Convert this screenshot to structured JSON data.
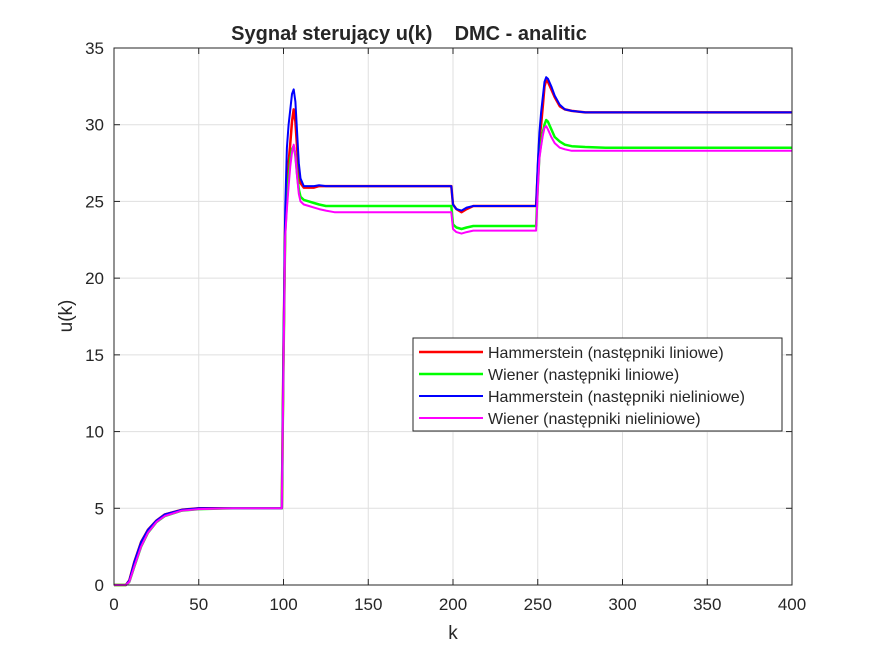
{
  "chart_data": {
    "type": "line",
    "title": "Sygnał sterujący u(k)    DMC - analitic",
    "xlabel": "k",
    "ylabel": "u(k)",
    "xlim": [
      0,
      400
    ],
    "ylim": [
      0,
      35
    ],
    "xticks": [
      0,
      50,
      100,
      150,
      200,
      250,
      300,
      350,
      400
    ],
    "yticks": [
      0,
      5,
      10,
      15,
      20,
      25,
      30,
      35
    ],
    "grid": true,
    "legend_position": "right, middle",
    "series": [
      {
        "name": "Hammerstein (następniki liniowe)",
        "color": "#ff0000",
        "x": [
          0,
          7,
          9,
          12,
          16,
          20,
          25,
          30,
          40,
          50,
          70,
          99,
          100,
          101,
          102,
          103,
          104,
          105,
          106,
          107,
          108,
          109,
          110,
          112,
          115,
          118,
          121,
          125,
          130,
          140,
          160,
          180,
          199,
          200,
          202,
          205,
          208,
          212,
          220,
          235,
          249,
          250,
          251,
          252,
          253,
          254,
          255,
          256,
          258,
          260,
          263,
          266,
          270,
          278,
          290,
          320,
          360,
          400
        ],
        "y": [
          0,
          0,
          0.3,
          1.5,
          2.8,
          3.6,
          4.2,
          4.6,
          4.9,
          5.0,
          5.0,
          5.0,
          15.3,
          23.5,
          25.8,
          27.5,
          28.8,
          30.2,
          31.0,
          30.2,
          28.5,
          27.0,
          26.2,
          25.9,
          25.9,
          25.9,
          26.0,
          26.0,
          26.0,
          26.0,
          26.0,
          26.0,
          26.0,
          24.8,
          24.5,
          24.3,
          24.5,
          24.7,
          24.7,
          24.7,
          24.7,
          27.0,
          29.0,
          30.0,
          31.2,
          32.5,
          32.9,
          32.8,
          32.3,
          31.8,
          31.2,
          31.0,
          30.9,
          30.8,
          30.8,
          30.8,
          30.8,
          30.8
        ]
      },
      {
        "name": "Wiener (następniki liniowe)",
        "color": "#00ff00",
        "x": [
          0,
          7,
          9,
          12,
          16,
          20,
          25,
          30,
          40,
          50,
          70,
          99,
          100,
          101,
          102,
          103,
          104,
          105,
          106,
          107,
          108,
          109,
          110,
          112,
          115,
          118,
          121,
          125,
          130,
          140,
          160,
          180,
          199,
          200,
          202,
          205,
          208,
          212,
          220,
          235,
          249,
          250,
          251,
          252,
          253,
          254,
          255,
          256,
          258,
          260,
          263,
          266,
          270,
          278,
          290,
          320,
          360,
          400
        ],
        "y": [
          0,
          0,
          0.2,
          1.2,
          2.5,
          3.4,
          4.1,
          4.5,
          4.85,
          4.95,
          5.0,
          5.0,
          14.5,
          23.0,
          25.0,
          26.5,
          27.7,
          28.4,
          28.6,
          28.0,
          26.8,
          25.8,
          25.3,
          25.1,
          25.0,
          24.9,
          24.8,
          24.7,
          24.7,
          24.7,
          24.7,
          24.7,
          24.7,
          23.5,
          23.3,
          23.2,
          23.3,
          23.4,
          23.4,
          23.4,
          23.4,
          26.0,
          28.0,
          28.8,
          29.5,
          30.0,
          30.3,
          30.2,
          29.7,
          29.2,
          28.9,
          28.7,
          28.6,
          28.55,
          28.5,
          28.5,
          28.5,
          28.5
        ]
      },
      {
        "name": "Hammerstein (następniki nieliniowe)",
        "color": "#0000ff",
        "x": [
          0,
          7,
          9,
          12,
          16,
          20,
          25,
          30,
          40,
          50,
          70,
          99,
          100,
          101,
          102,
          103,
          104,
          105,
          106,
          107,
          108,
          109,
          110,
          112,
          115,
          118,
          121,
          125,
          130,
          140,
          160,
          180,
          199,
          200,
          202,
          205,
          208,
          212,
          220,
          235,
          249,
          250,
          251,
          252,
          253,
          254,
          255,
          256,
          258,
          260,
          263,
          266,
          270,
          278,
          290,
          320,
          360,
          400
        ],
        "y": [
          0,
          0,
          0.3,
          1.5,
          2.8,
          3.6,
          4.2,
          4.6,
          4.9,
          5.0,
          5.0,
          5.0,
          15.6,
          24.5,
          28.5,
          30.0,
          31.0,
          32.0,
          32.3,
          31.5,
          29.5,
          27.5,
          26.5,
          26.0,
          26.0,
          26.0,
          26.05,
          26.0,
          26.0,
          26.0,
          26.0,
          26.0,
          26.0,
          24.8,
          24.5,
          24.4,
          24.6,
          24.7,
          24.7,
          24.7,
          24.7,
          27.5,
          29.5,
          30.8,
          31.8,
          32.8,
          33.1,
          33.0,
          32.5,
          31.9,
          31.3,
          31.0,
          30.9,
          30.8,
          30.8,
          30.8,
          30.8,
          30.8
        ]
      },
      {
        "name": "Wiener (następniki nieliniowe)",
        "color": "#ff00ff",
        "x": [
          0,
          7,
          9,
          12,
          16,
          20,
          25,
          30,
          40,
          50,
          70,
          99,
          100,
          101,
          102,
          103,
          104,
          105,
          106,
          107,
          108,
          109,
          110,
          112,
          115,
          118,
          121,
          125,
          130,
          140,
          160,
          180,
          199,
          200,
          202,
          205,
          208,
          212,
          220,
          235,
          249,
          250,
          251,
          252,
          253,
          254,
          255,
          256,
          258,
          260,
          263,
          266,
          270,
          278,
          290,
          320,
          360,
          400
        ],
        "y": [
          0,
          0,
          0.2,
          1.2,
          2.5,
          3.4,
          4.1,
          4.5,
          4.85,
          4.95,
          5.0,
          5.0,
          14.2,
          22.7,
          24.5,
          26.0,
          27.3,
          28.2,
          28.7,
          28.0,
          26.6,
          25.5,
          25.0,
          24.8,
          24.7,
          24.6,
          24.5,
          24.4,
          24.3,
          24.3,
          24.3,
          24.3,
          24.3,
          23.2,
          23.0,
          22.9,
          23.0,
          23.1,
          23.1,
          23.1,
          23.1,
          25.8,
          27.8,
          28.6,
          29.3,
          29.8,
          29.9,
          29.7,
          29.2,
          28.8,
          28.5,
          28.4,
          28.3,
          28.3,
          28.3,
          28.3,
          28.3,
          28.3
        ]
      }
    ]
  }
}
